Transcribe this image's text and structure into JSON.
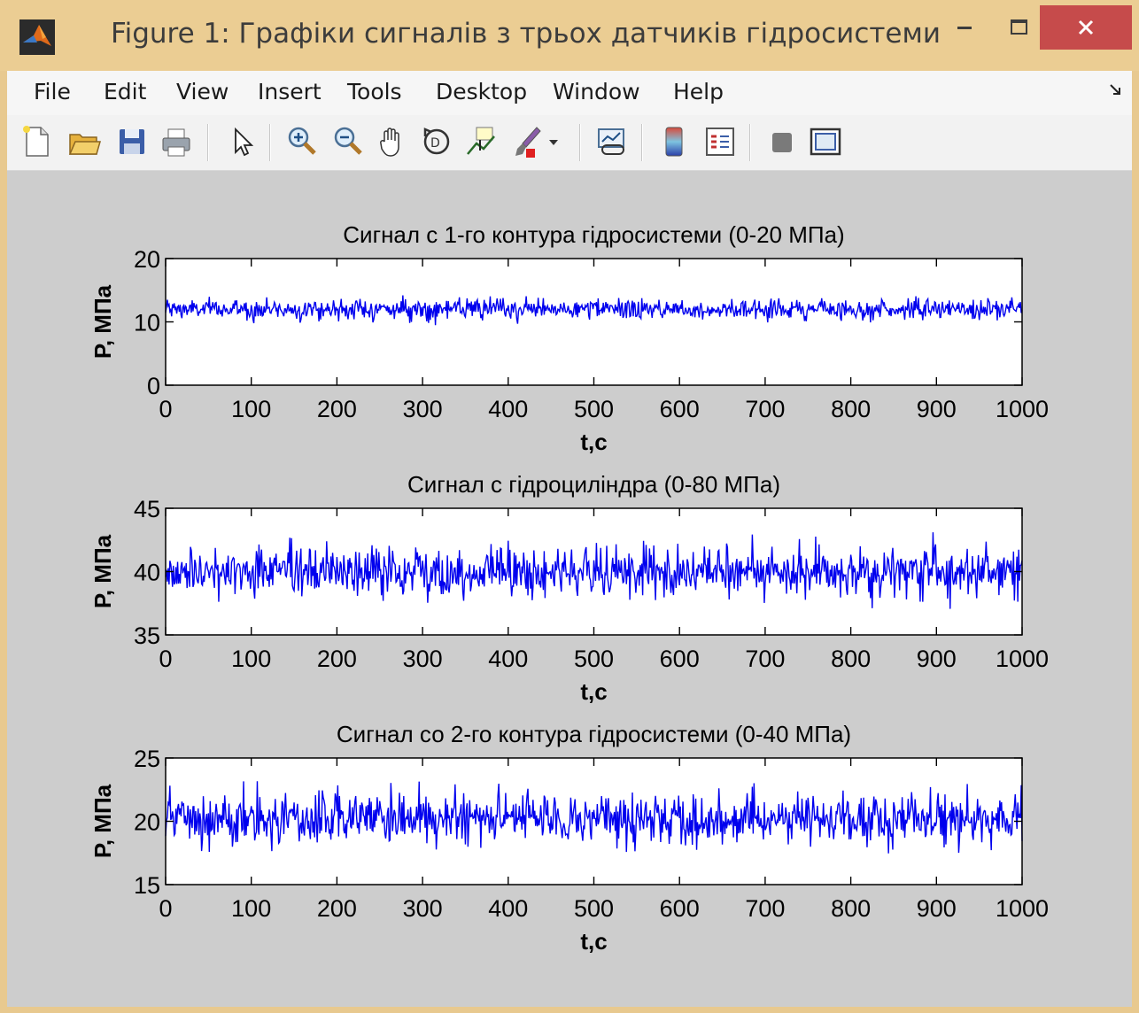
{
  "window": {
    "title": "Figure 1: Графіки сигналів з трьох датчиків гідросистеми",
    "controls": {
      "minimize": "–",
      "maximize": "☐",
      "close": "✕"
    }
  },
  "menubar": {
    "items": [
      {
        "label": "File"
      },
      {
        "label": "Edit"
      },
      {
        "label": "View"
      },
      {
        "label": "Insert"
      },
      {
        "label": "Tools"
      },
      {
        "label": "Desktop"
      },
      {
        "label": "Window"
      },
      {
        "label": "Help"
      }
    ]
  },
  "toolbar": {
    "icons": [
      "new-figure-icon",
      "open-file-icon",
      "save-icon",
      "print-icon",
      "edit-plot-arrow-icon",
      "zoom-in-icon",
      "zoom-out-icon",
      "pan-hand-icon",
      "rotate-3d-icon",
      "data-cursor-icon",
      "brush-icon",
      "brush-dropdown-icon",
      "link-plot-icon",
      "insert-colorbar-icon",
      "insert-legend-icon",
      "hide-plot-tools-icon",
      "show-plot-tools-icon"
    ]
  },
  "colors": {
    "line": "#0000ee",
    "figure_bg": "#cdcdcd",
    "axes_bg": "#ffffff"
  },
  "chart_data": [
    {
      "type": "line",
      "title": "Сигнал с 1-го контура гідросистеми (0-20 МПа)",
      "xlabel": "t,c",
      "ylabel": "P, МПа",
      "xlim": [
        0,
        1000
      ],
      "ylim": [
        0,
        20
      ],
      "xticks": [
        "0",
        "100",
        "200",
        "300",
        "400",
        "500",
        "600",
        "700",
        "800",
        "900",
        "1000"
      ],
      "yticks": [
        "0",
        "10",
        "20"
      ],
      "series": [
        {
          "mean": 12,
          "std": 0.8,
          "min": 9.3,
          "max": 15.5,
          "n_points": 1000
        }
      ]
    },
    {
      "type": "line",
      "title": "Сигнал с гідроциліндра (0-80 МПа)",
      "xlabel": "t,c",
      "ylabel": "P, МПа",
      "xlim": [
        0,
        1000
      ],
      "ylim": [
        35,
        45
      ],
      "xticks": [
        "0",
        "100",
        "200",
        "300",
        "400",
        "500",
        "600",
        "700",
        "800",
        "900",
        "1000"
      ],
      "yticks": [
        "35",
        "40",
        "45"
      ],
      "series": [
        {
          "mean": 40,
          "std": 1.0,
          "min": 36.8,
          "max": 43.2,
          "n_points": 1000
        }
      ]
    },
    {
      "type": "line",
      "title": "Сигнал со 2-го контура гідросистеми (0-40 МПа)",
      "xlabel": "t,c",
      "ylabel": "P, МПа",
      "xlim": [
        0,
        1000
      ],
      "ylim": [
        15,
        25
      ],
      "xticks": [
        "0",
        "100",
        "200",
        "300",
        "400",
        "500",
        "600",
        "700",
        "800",
        "900",
        "1000"
      ],
      "yticks": [
        "15",
        "20",
        "25"
      ],
      "series": [
        {
          "mean": 20.2,
          "std": 1.0,
          "min": 17.4,
          "max": 23.2,
          "n_points": 1000
        }
      ]
    }
  ]
}
